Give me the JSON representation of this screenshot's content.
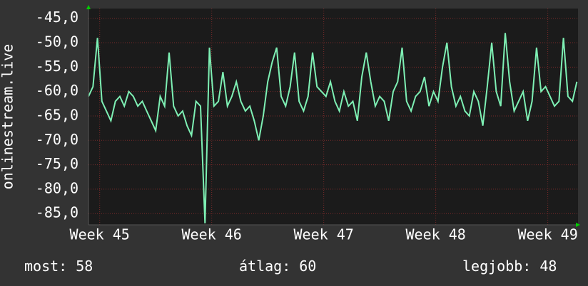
{
  "chart_data": {
    "type": "line",
    "ylabel": "onlinestream.live",
    "xlim": [
      44.9,
      49.27
    ],
    "ylim": [
      -87.3,
      -43
    ],
    "xticks": [
      {
        "value": 45,
        "label": "Week 45"
      },
      {
        "value": 46,
        "label": "Week 46"
      },
      {
        "value": 47,
        "label": "Week 47"
      },
      {
        "value": 48,
        "label": "Week 48"
      },
      {
        "value": 49,
        "label": "Week 49"
      }
    ],
    "yticks": [
      {
        "value": -45,
        "label": "-45,0"
      },
      {
        "value": -50,
        "label": "-50,0"
      },
      {
        "value": -55,
        "label": "-55,0"
      },
      {
        "value": -60,
        "label": "-60,0"
      },
      {
        "value": -65,
        "label": "-65,0"
      },
      {
        "value": -70,
        "label": "-70,0"
      },
      {
        "value": -75,
        "label": "-75,0"
      },
      {
        "value": -80,
        "label": "-80,0"
      },
      {
        "value": -85,
        "label": "-85,0"
      }
    ],
    "grid": true,
    "x": [
      44.9,
      44.94,
      44.98,
      45.02,
      45.06,
      45.1,
      45.14,
      45.18,
      45.22,
      45.26,
      45.3,
      45.34,
      45.38,
      45.42,
      45.46,
      45.5,
      45.54,
      45.58,
      45.62,
      45.66,
      45.7,
      45.74,
      45.78,
      45.82,
      45.86,
      45.9,
      45.94,
      45.98,
      46.02,
      46.06,
      46.1,
      46.14,
      46.18,
      46.22,
      46.26,
      46.3,
      46.34,
      46.38,
      46.42,
      46.46,
      46.5,
      46.54,
      46.58,
      46.62,
      46.66,
      46.7,
      46.74,
      46.78,
      46.82,
      46.86,
      46.9,
      46.94,
      46.98,
      47.02,
      47.06,
      47.1,
      47.14,
      47.18,
      47.22,
      47.26,
      47.3,
      47.34,
      47.38,
      47.42,
      47.46,
      47.5,
      47.54,
      47.58,
      47.62,
      47.66,
      47.7,
      47.74,
      47.78,
      47.82,
      47.86,
      47.9,
      47.94,
      47.98,
      48.02,
      48.06,
      48.1,
      48.14,
      48.18,
      48.22,
      48.26,
      48.3,
      48.34,
      48.38,
      48.42,
      48.46,
      48.5,
      48.54,
      48.58,
      48.62,
      48.66,
      48.7,
      48.74,
      48.78,
      48.82,
      48.86,
      48.9,
      48.94,
      48.98,
      49.02,
      49.06,
      49.1,
      49.14,
      49.18,
      49.22,
      49.26
    ],
    "series": [
      {
        "name": "onlinestream.live",
        "color": "#7ef0b4",
        "values": [
          -61,
          -59,
          -49,
          -62,
          -64,
          -66,
          -62,
          -61,
          -63,
          -60,
          -61,
          -63,
          -62,
          -64,
          -66,
          -68,
          -61,
          -63,
          -52,
          -63,
          -65,
          -64,
          -67,
          -69,
          -62,
          -63,
          -87,
          -51,
          -63,
          -62,
          -56,
          -63,
          -61,
          -58,
          -62,
          -64,
          -63,
          -66,
          -70,
          -65,
          -58,
          -54,
          -51,
          -61,
          -63,
          -59,
          -52,
          -62,
          -64,
          -61,
          -52,
          -59,
          -60,
          -61,
          -58,
          -62,
          -64,
          -60,
          -63,
          -62,
          -66,
          -57,
          -52,
          -58,
          -63,
          -61,
          -62,
          -66,
          -60,
          -58,
          -51,
          -62,
          -64,
          -61,
          -60,
          -57,
          -63,
          -60,
          -62,
          -55,
          -50,
          -59,
          -63,
          -61,
          -64,
          -65,
          -60,
          -62,
          -67,
          -59,
          -50,
          -60,
          -63,
          -48,
          -58,
          -64,
          -62,
          -60,
          -66,
          -62,
          -51,
          -60,
          -59,
          -61,
          -63,
          -62,
          -49,
          -61,
          -62,
          -58
        ]
      }
    ],
    "stats": [
      {
        "label": "most:",
        "value": 58
      },
      {
        "label": "átlag:",
        "value": 60
      },
      {
        "label": "legjobb:",
        "value": 48
      }
    ]
  }
}
